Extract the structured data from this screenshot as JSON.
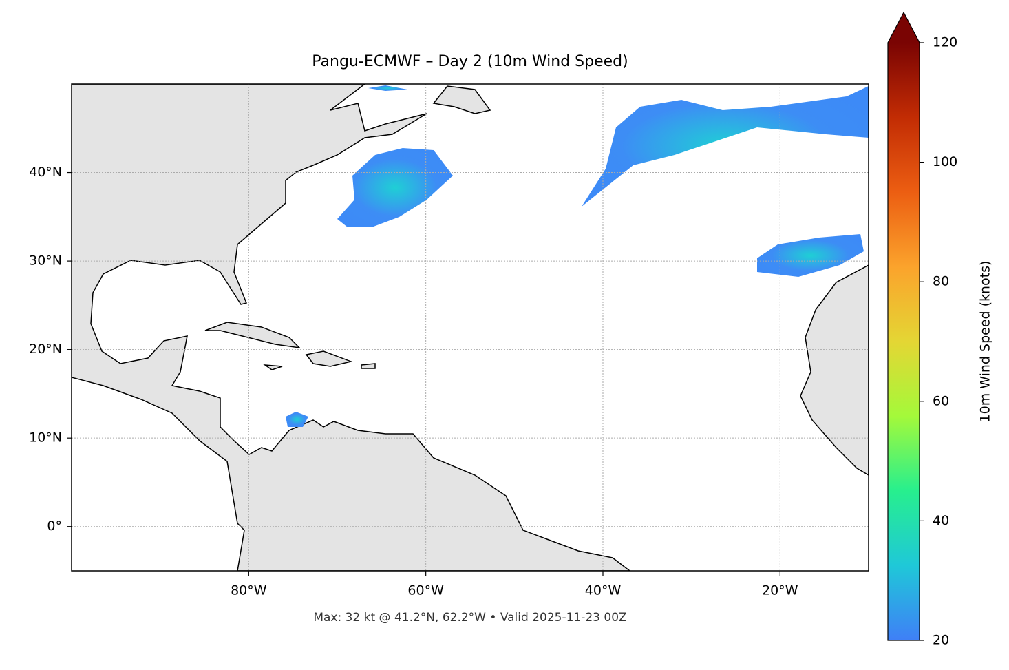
{
  "chart_data": {
    "type": "map",
    "title": "Pangu-ECMWF – Day 2 (10m Wind Speed)",
    "footnote": "Max: 32 kt @ 41.2°N, 62.2°W • Valid 2025-11-23 00Z",
    "xlim": [
      -100,
      -10
    ],
    "ylim": [
      -5,
      50
    ],
    "xticks": [
      {
        "value": -80,
        "label": "80°W"
      },
      {
        "value": -60,
        "label": "60°W"
      },
      {
        "value": -40,
        "label": "40°W"
      },
      {
        "value": -20,
        "label": "20°W"
      }
    ],
    "yticks": [
      {
        "value": 0,
        "label": "0°"
      },
      {
        "value": 10,
        "label": "10°N"
      },
      {
        "value": 20,
        "label": "20°N"
      },
      {
        "value": 30,
        "label": "30°N"
      },
      {
        "value": 40,
        "label": "40°N"
      }
    ],
    "grid": true,
    "colorbar": {
      "label": "10m Wind Speed (knots)",
      "lim": [
        20,
        120
      ],
      "ticks": [
        20,
        40,
        60,
        80,
        100,
        120
      ],
      "colors": [
        "#3f7ff7",
        "#1fc8d8",
        "#27ef8e",
        "#a4f93a",
        "#e4d634",
        "#fba32c",
        "#ec5e12",
        "#c22c04",
        "#7a0403"
      ]
    }
  }
}
